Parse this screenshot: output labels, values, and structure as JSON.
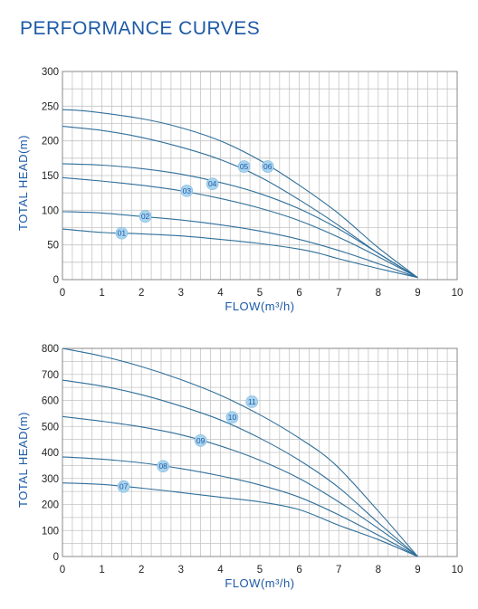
{
  "page": {
    "heading": "PERFORMANCE CURVES"
  },
  "colors": {
    "curve": "#2f6f9a",
    "grid": "#c4c4c4",
    "frame": "#8a8a8a",
    "marker_fill": "#a9d4ef",
    "marker_text": "#1d5aa6",
    "label": "#1d5aa6"
  },
  "chart_data": [
    {
      "type": "line",
      "xlabel": "FLOW(m³/h)",
      "ylabel": "TOTAL HEAD(m)",
      "xlim": [
        0,
        10
      ],
      "ylim": [
        0,
        300
      ],
      "xticks": [
        0,
        1,
        2,
        3,
        4,
        5,
        6,
        7,
        8,
        9,
        10
      ],
      "yticks": [
        0,
        50,
        100,
        150,
        200,
        250,
        300
      ],
      "grid": true,
      "series": [
        {
          "name": "01",
          "label_at": [
            1.5,
            67
          ],
          "points": [
            [
              0,
              73
            ],
            [
              1,
              68
            ],
            [
              2,
              66
            ],
            [
              3,
              63
            ],
            [
              4,
              58
            ],
            [
              5,
              52
            ],
            [
              6,
              44
            ],
            [
              6.5,
              38
            ],
            [
              7,
              30
            ],
            [
              8,
              16
            ],
            [
              9,
              3
            ]
          ]
        },
        {
          "name": "02",
          "label_at": [
            2.1,
            91
          ],
          "points": [
            [
              0,
              98
            ],
            [
              1,
              96
            ],
            [
              2,
              91
            ],
            [
              3,
              86
            ],
            [
              4,
              79
            ],
            [
              5,
              70
            ],
            [
              6,
              58
            ],
            [
              7,
              42
            ],
            [
              8,
              23
            ],
            [
              9,
              3
            ]
          ]
        },
        {
          "name": "03",
          "label_at": [
            3.15,
            128
          ],
          "points": [
            [
              0,
              147
            ],
            [
              1,
              142
            ],
            [
              2,
              136
            ],
            [
              3,
              128
            ],
            [
              4,
              117
            ],
            [
              5,
              103
            ],
            [
              6,
              85
            ],
            [
              7,
              61
            ],
            [
              8,
              33
            ],
            [
              9,
              3
            ]
          ]
        },
        {
          "name": "04",
          "label_at": [
            3.8,
            138
          ],
          "points": [
            [
              0,
              167
            ],
            [
              1,
              165
            ],
            [
              2,
              160
            ],
            [
              3,
              152
            ],
            [
              4,
              140
            ],
            [
              5,
              124
            ],
            [
              6,
              102
            ],
            [
              7,
              73
            ],
            [
              8,
              38
            ],
            [
              9,
              3
            ]
          ]
        },
        {
          "name": "05",
          "label_at": [
            4.6,
            163
          ],
          "points": [
            [
              0,
              221
            ],
            [
              1,
              215
            ],
            [
              2,
              205
            ],
            [
              3,
              191
            ],
            [
              4,
              173
            ],
            [
              5,
              148
            ],
            [
              6,
              115
            ],
            [
              7,
              78
            ],
            [
              8,
              38
            ],
            [
              9,
              3
            ]
          ]
        },
        {
          "name": "06",
          "label_at": [
            5.2,
            163
          ],
          "points": [
            [
              0,
              245
            ],
            [
              0.6,
              243
            ],
            [
              2,
              232
            ],
            [
              3,
              219
            ],
            [
              4,
              200
            ],
            [
              5,
              172
            ],
            [
              6,
              136
            ],
            [
              7,
              95
            ],
            [
              8,
              46
            ],
            [
              9,
              3
            ]
          ]
        }
      ]
    },
    {
      "type": "line",
      "xlabel": "FLOW(m³/h)",
      "ylabel": "TOTAL HEAD(m)",
      "xlim": [
        0,
        10
      ],
      "ylim": [
        0,
        800
      ],
      "xticks": [
        0,
        1,
        2,
        3,
        4,
        5,
        6,
        7,
        8,
        9,
        10
      ],
      "yticks": [
        0,
        100,
        200,
        300,
        400,
        500,
        600,
        700,
        800
      ],
      "grid": true,
      "series": [
        {
          "name": "07",
          "label_at": [
            1.55,
            269
          ],
          "points": [
            [
              0,
              283
            ],
            [
              1,
              277
            ],
            [
              2,
              263
            ],
            [
              3,
              246
            ],
            [
              4,
              228
            ],
            [
              5,
              210
            ],
            [
              6,
              180
            ],
            [
              7,
              120
            ],
            [
              8,
              65
            ],
            [
              9,
              0
            ]
          ]
        },
        {
          "name": "08",
          "label_at": [
            2.55,
            347
          ],
          "points": [
            [
              0,
              383
            ],
            [
              1,
              374
            ],
            [
              2,
              360
            ],
            [
              3,
              338
            ],
            [
              4,
              310
            ],
            [
              5,
              275
            ],
            [
              6,
              228
            ],
            [
              7,
              160
            ],
            [
              8,
              82
            ],
            [
              9,
              0
            ]
          ]
        },
        {
          "name": "09",
          "label_at": [
            3.5,
            446
          ],
          "points": [
            [
              0,
              538
            ],
            [
              1,
              520
            ],
            [
              2,
              498
            ],
            [
              3,
              468
            ],
            [
              4,
              425
            ],
            [
              5,
              370
            ],
            [
              6,
              300
            ],
            [
              7,
              210
            ],
            [
              8,
              108
            ],
            [
              9,
              0
            ]
          ]
        },
        {
          "name": "10",
          "label_at": [
            4.3,
            535
          ],
          "points": [
            [
              0,
              678
            ],
            [
              1,
              655
            ],
            [
              2,
              622
            ],
            [
              3,
              578
            ],
            [
              4,
              525
            ],
            [
              5,
              455
            ],
            [
              6,
              370
            ],
            [
              7,
              265
            ],
            [
              8,
              130
            ],
            [
              9,
              0
            ]
          ]
        },
        {
          "name": "11",
          "label_at": [
            4.8,
            595
          ],
          "points": [
            [
              0,
              800
            ],
            [
              1,
              770
            ],
            [
              2,
              730
            ],
            [
              3,
              680
            ],
            [
              4,
              620
            ],
            [
              5,
              545
            ],
            [
              6,
              455
            ],
            [
              6.9,
              355
            ],
            [
              8,
              175
            ],
            [
              9,
              0
            ]
          ]
        }
      ]
    }
  ]
}
